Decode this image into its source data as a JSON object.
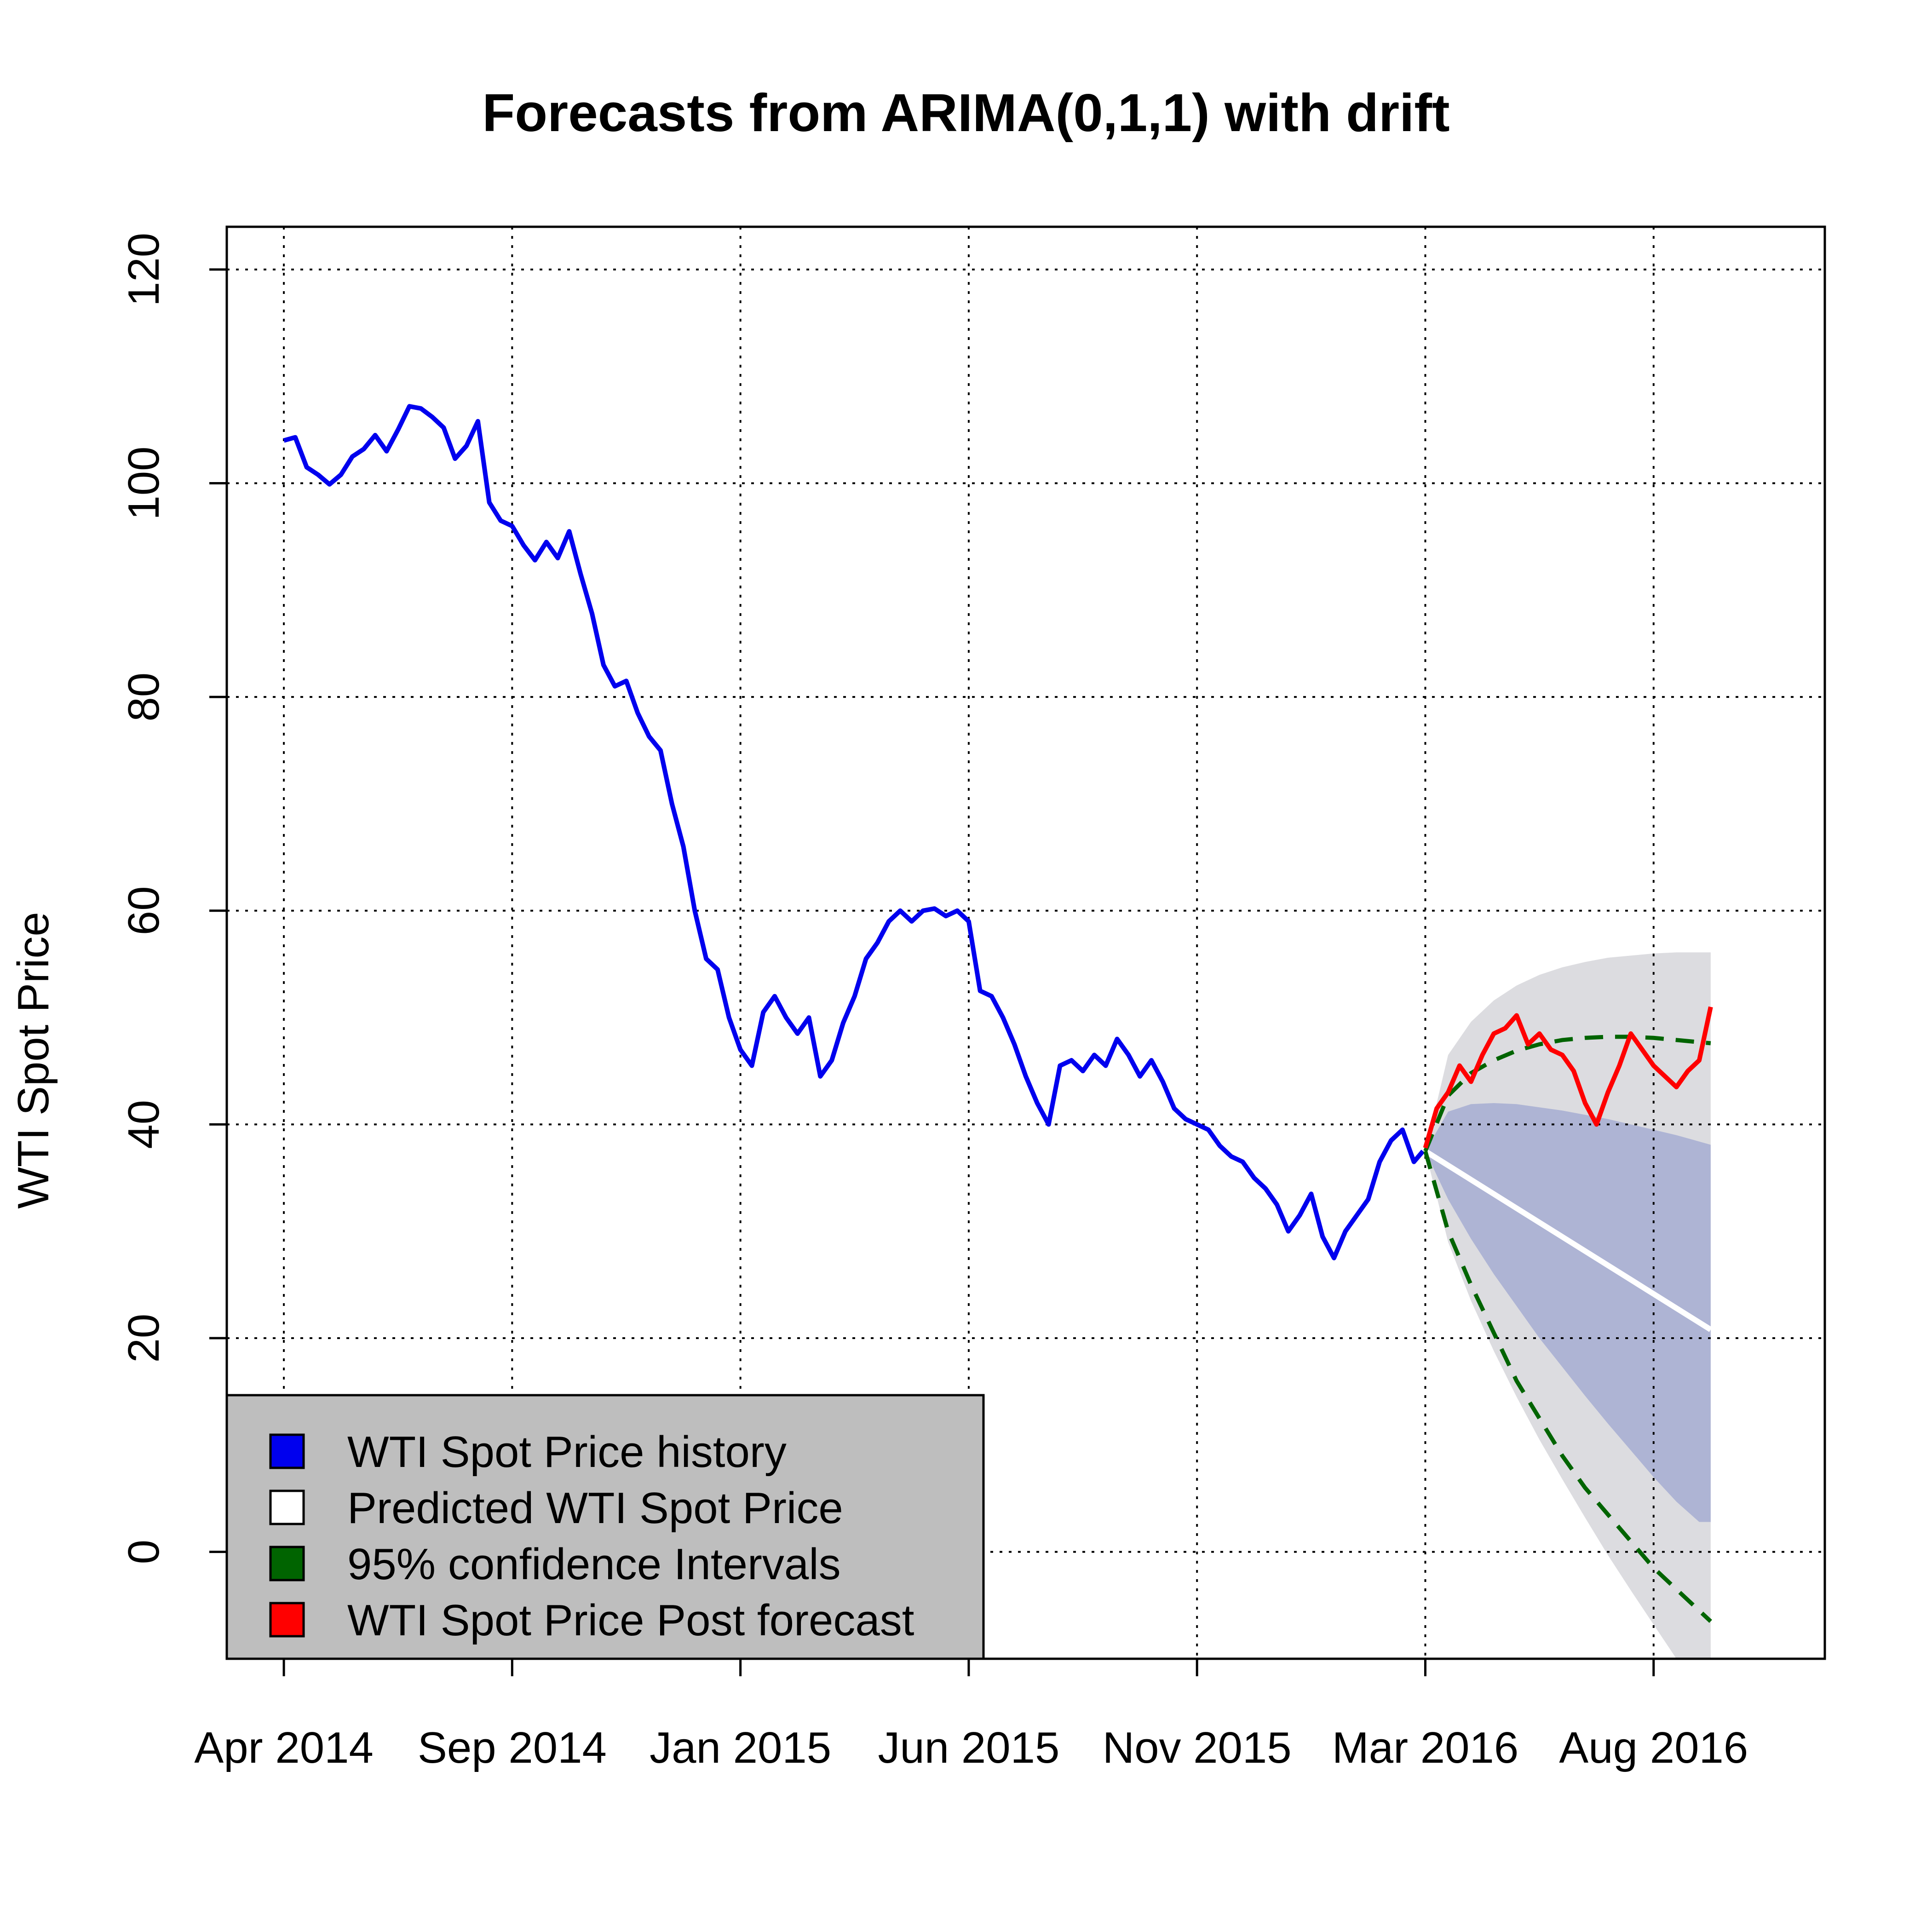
{
  "chart_data": {
    "type": "line",
    "title": "Forecasts from ARIMA(0,1,1) with drift",
    "xlabel": "",
    "ylabel": "WTI Spot Price",
    "ylim": [
      -10,
      124
    ],
    "xlim": [
      -0.25,
      6.75
    ],
    "y_ticks": [
      0,
      20,
      40,
      60,
      80,
      100,
      120
    ],
    "y_tick_labels": [
      "0",
      "20",
      "40",
      "60",
      "80",
      "100",
      "120"
    ],
    "x_ticks": [
      0,
      1,
      2,
      3,
      4,
      5,
      6
    ],
    "x_tick_labels": [
      "Apr 2014",
      "Sep 2014",
      "Jan 2015",
      "Jun 2015",
      "Nov 2015",
      "Mar 2016",
      "Aug 2016"
    ],
    "grid": true,
    "legend_position": "bottom-left",
    "colors": {
      "history": "#0000ee",
      "predicted": "#ffffff",
      "ci": "#006400",
      "post": "#ff0000",
      "band80": "#aeb4d4",
      "band95": "#dcdce0",
      "legend_bg": "#bebebe"
    },
    "legend": [
      {
        "label": "WTI Spot Price  history",
        "color": "#0000ee"
      },
      {
        "label": "Predicted  WTI Spot Price",
        "color": "#ffffff"
      },
      {
        "label": "95% confidence Intervals",
        "color": "#006400"
      },
      {
        "label": "WTI Spot Price  Post forecast",
        "color": "#ff0000"
      }
    ],
    "series": [
      {
        "name": "WTI Spot Price  history",
        "x": [
          0,
          0.05,
          0.1,
          0.15,
          0.2,
          0.25,
          0.3,
          0.35,
          0.4,
          0.45,
          0.5,
          0.55,
          0.6,
          0.65,
          0.7,
          0.75,
          0.8,
          0.85,
          0.9,
          0.95,
          1.0,
          1.05,
          1.1,
          1.15,
          1.2,
          1.25,
          1.3,
          1.35,
          1.4,
          1.45,
          1.5,
          1.55,
          1.6,
          1.65,
          1.7,
          1.75,
          1.8,
          1.85,
          1.9,
          1.95,
          2.0,
          2.05,
          2.1,
          2.15,
          2.2,
          2.25,
          2.3,
          2.35,
          2.4,
          2.45,
          2.5,
          2.55,
          2.6,
          2.65,
          2.7,
          2.75,
          2.8,
          2.85,
          2.9,
          2.95,
          3.0,
          3.05,
          3.1,
          3.15,
          3.2,
          3.25,
          3.3,
          3.35,
          3.4,
          3.45,
          3.5,
          3.55,
          3.6,
          3.65,
          3.7,
          3.75,
          3.8,
          3.85,
          3.9,
          3.95,
          4.0,
          4.05,
          4.1,
          4.15,
          4.2,
          4.25,
          4.3,
          4.35,
          4.4,
          4.45,
          4.5,
          4.55,
          4.6,
          4.65,
          4.7,
          4.75,
          4.8,
          4.85,
          4.9,
          4.95,
          4.99
        ],
        "y": [
          104.0,
          104.3,
          101.5,
          100.8,
          99.9,
          100.8,
          102.5,
          103.2,
          104.5,
          103.0,
          105.0,
          107.2,
          107.0,
          106.2,
          105.2,
          102.3,
          103.5,
          105.8,
          98.2,
          96.5,
          96.0,
          94.2,
          92.8,
          94.5,
          93.0,
          95.5,
          91.5,
          87.8,
          83.0,
          81.0,
          81.5,
          78.5,
          76.3,
          75.0,
          70.0,
          66.0,
          60.0,
          55.5,
          54.5,
          50.0,
          47.0,
          45.5,
          50.5,
          52.0,
          50.0,
          48.5,
          50.0,
          44.5,
          46.0,
          49.5,
          52.0,
          55.5,
          57.0,
          59.0,
          60.0,
          59.0,
          60.0,
          60.2,
          59.5,
          60.0,
          59.0,
          52.5,
          52.0,
          50.0,
          47.5,
          44.5,
          42.0,
          40.0,
          45.5,
          46.0,
          45.0,
          46.5,
          45.5,
          48.0,
          46.5,
          44.5,
          46.0,
          44.0,
          41.5,
          40.5,
          40.0,
          39.5,
          38.0,
          37.0,
          36.5,
          35.0,
          34.0,
          32.5,
          30.0,
          31.5,
          33.5,
          29.5,
          27.5,
          30.0,
          31.5,
          33.0,
          36.5,
          38.5,
          39.5,
          36.5,
          37.5
        ]
      },
      {
        "name": "Predicted  WTI Spot Price",
        "x": [
          5.0,
          6.25
        ],
        "y": [
          37.5,
          20.8
        ]
      },
      {
        "name": "95% confidence Intervals",
        "x": [
          5.0,
          5.1,
          5.2,
          5.3,
          5.4,
          5.5,
          5.6,
          5.7,
          5.8,
          5.9,
          6.0,
          6.1,
          6.2,
          6.25
        ],
        "y_upper": [
          37.5,
          42.7,
          44.8,
          46.0,
          46.9,
          47.5,
          47.9,
          48.1,
          48.2,
          48.2,
          48.1,
          47.9,
          47.7,
          47.6
        ],
        "y_lower": [
          37.5,
          30.0,
          25.0,
          20.5,
          16.0,
          12.5,
          9.0,
          6.0,
          3.5,
          1.0,
          -1.5,
          -3.5,
          -5.5,
          -6.5
        ]
      },
      {
        "name": "WTI Spot Price  Post forecast",
        "x": [
          5.0,
          5.05,
          5.1,
          5.15,
          5.2,
          5.25,
          5.3,
          5.35,
          5.4,
          5.45,
          5.5,
          5.55,
          5.6,
          5.65,
          5.7,
          5.75,
          5.8,
          5.85,
          5.9,
          5.95,
          6.0,
          6.05,
          6.1,
          6.15,
          6.2,
          6.25
        ],
        "y": [
          37.8,
          41.5,
          43.0,
          45.5,
          44.0,
          46.5,
          48.5,
          49.0,
          50.2,
          47.5,
          48.5,
          47.0,
          46.5,
          45.0,
          42.0,
          40.0,
          43.0,
          45.5,
          48.5,
          47.0,
          45.5,
          44.5,
          43.5,
          45.0,
          46.0,
          51.0
        ]
      }
    ],
    "bands": [
      {
        "name": "95% band",
        "x": [
          5.0,
          5.1,
          5.2,
          5.3,
          5.4,
          5.5,
          5.6,
          5.7,
          5.8,
          5.9,
          6.0,
          6.1,
          6.2,
          6.25
        ],
        "upper": [
          37.5,
          46.5,
          49.6,
          51.6,
          53.0,
          54.0,
          54.7,
          55.2,
          55.6,
          55.8,
          56.0,
          56.1,
          56.1,
          56.1
        ],
        "lower": [
          37.5,
          29.0,
          23.5,
          18.8,
          14.5,
          10.5,
          6.8,
          3.2,
          -0.3,
          -3.6,
          -6.8,
          -10,
          -10,
          -10
        ]
      },
      {
        "name": "80% band",
        "x": [
          5.0,
          5.1,
          5.2,
          5.3,
          5.4,
          5.5,
          5.6,
          5.7,
          5.8,
          5.9,
          6.0,
          6.1,
          6.2,
          6.25
        ],
        "upper": [
          37.5,
          41.2,
          41.9,
          42.0,
          41.9,
          41.6,
          41.3,
          40.9,
          40.5,
          40.0,
          39.5,
          39.0,
          38.4,
          38.1
        ],
        "lower": [
          37.5,
          33.0,
          29.3,
          26.0,
          23.0,
          20.0,
          17.3,
          14.6,
          12.0,
          9.5,
          7.0,
          4.7,
          2.8,
          2.8
        ]
      }
    ]
  }
}
